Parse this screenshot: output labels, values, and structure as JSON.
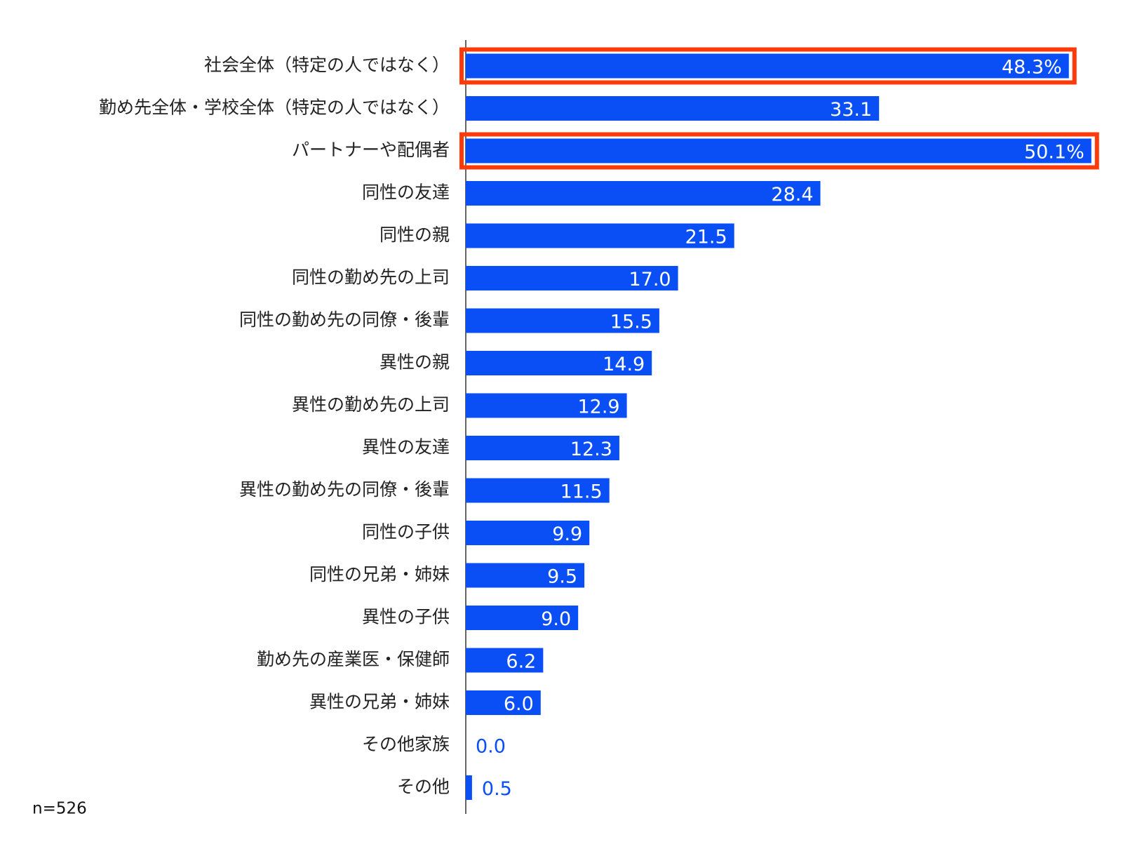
{
  "chart_data": {
    "type": "bar",
    "orientation": "horizontal",
    "categories": [
      "社会全体（特定の人ではなく）",
      "勤め先全体・学校全体（特定の人ではなく）",
      "パートナーや配偶者",
      "同性の友達",
      "同性の親",
      "同性の勤め先の上司",
      "同性の勤め先の同僚・後輩",
      "異性の親",
      "異性の勤め先の上司",
      "異性の友達",
      "異性の勤め先の同僚・後輩",
      "同性の子供",
      "同性の兄弟・姉妹",
      "異性の子供",
      "勤め先の産業医・保健師",
      "異性の兄弟・姉妹",
      "その他家族",
      "その他"
    ],
    "values": [
      48.3,
      33.1,
      50.1,
      28.4,
      21.5,
      17.0,
      15.5,
      14.9,
      12.9,
      12.3,
      11.5,
      9.9,
      9.5,
      9.0,
      6.2,
      6.0,
      0.0,
      0.5
    ],
    "value_labels": [
      "48.3%",
      "33.1",
      "50.1%",
      "28.4",
      "21.5",
      "17.0",
      "15.5",
      "14.9",
      "12.9",
      "12.3",
      "11.5",
      "9.9",
      "9.5",
      "9.0",
      "6.2",
      "6.0",
      "0.0",
      "0.5"
    ],
    "color": "#0a4ff5",
    "highlighted_indices": [
      0,
      2
    ],
    "highlight_color": "#ff3a0a",
    "note": "n=526"
  }
}
